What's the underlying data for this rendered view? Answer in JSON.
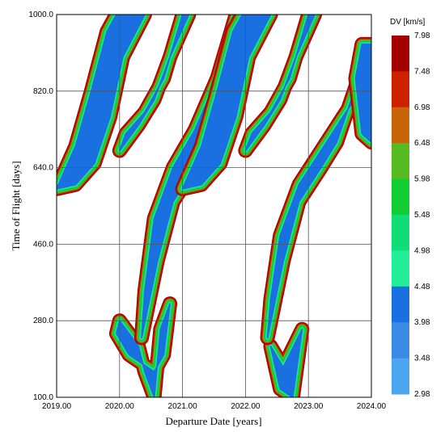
{
  "chart_data": {
    "type": "contour",
    "xlabel": "Departure Date [years]",
    "ylabel": "Time of Flight [days]",
    "xlim": [
      2019.0,
      2024.0
    ],
    "ylim": [
      100.0,
      1000.0
    ],
    "x_ticks": [
      "2019.00",
      "2020.00",
      "2021.00",
      "2022.00",
      "2023.00",
      "2024.00"
    ],
    "y_ticks": [
      "100.0",
      "280.0",
      "460.0",
      "640.0",
      "820.0",
      "1000.0"
    ],
    "x_tick_values": [
      2019,
      2020,
      2021,
      2022,
      2023,
      2024
    ],
    "y_tick_values": [
      100,
      280,
      460,
      640,
      820,
      1000
    ],
    "grid": true,
    "colorbar": {
      "title": "DV [km/s]",
      "levels": [
        "7.98",
        "7.48",
        "6.98",
        "6.48",
        "5.98",
        "5.48",
        "4.98",
        "4.48",
        "3.98",
        "3.48",
        "2.98"
      ],
      "level_values": [
        7.98,
        7.48,
        6.98,
        6.48,
        5.98,
        5.48,
        4.98,
        4.48,
        3.98,
        3.48,
        2.98
      ],
      "colors": [
        "#a40000",
        "#cc2200",
        "#c8640a",
        "#55bb1e",
        "#11cc33",
        "#11dd77",
        "#22ee99",
        "#1a70e0",
        "#3a8ae6",
        "#4aa6f0"
      ]
    },
    "regions": [
      {
        "band": "short",
        "points": [
          [
            2020.3,
            220
          ],
          [
            2020.0,
            280
          ],
          [
            2019.95,
            250
          ],
          [
            2020.15,
            200
          ],
          [
            2020.55,
            160
          ],
          [
            2020.7,
            200
          ],
          [
            2020.8,
            320
          ],
          [
            2020.65,
            260
          ],
          [
            2020.55,
            100
          ],
          [
            2020.4,
            160
          ]
        ]
      },
      {
        "band": "mid-1",
        "points": [
          [
            2020.35,
            240
          ],
          [
            2020.6,
            420
          ],
          [
            2020.85,
            560
          ],
          [
            2021.2,
            640
          ],
          [
            2021.45,
            700
          ],
          [
            2021.8,
            830
          ],
          [
            2022.05,
            960
          ],
          [
            2022.2,
            1000
          ],
          [
            2021.85,
            1000
          ],
          [
            2021.55,
            850
          ],
          [
            2021.2,
            730
          ],
          [
            2020.85,
            640
          ],
          [
            2020.55,
            520
          ],
          [
            2020.4,
            350
          ]
        ]
      },
      {
        "band": "long-1",
        "points": [
          [
            2019.0,
            590
          ],
          [
            2019.3,
            690
          ],
          [
            2019.55,
            820
          ],
          [
            2019.8,
            960
          ],
          [
            2019.95,
            1000
          ],
          [
            2020.4,
            1000
          ],
          [
            2020.05,
            900
          ],
          [
            2019.85,
            760
          ],
          [
            2019.6,
            650
          ],
          [
            2019.3,
            600
          ]
        ]
      },
      {
        "band": "long-1b",
        "points": [
          [
            2020.0,
            680
          ],
          [
            2020.3,
            740
          ],
          [
            2020.55,
            800
          ],
          [
            2020.8,
            900
          ],
          [
            2021.1,
            1000
          ],
          [
            2021.0,
            1000
          ],
          [
            2020.7,
            850
          ],
          [
            2020.4,
            770
          ],
          [
            2020.1,
            720
          ]
        ]
      },
      {
        "band": "short-2",
        "points": [
          [
            2022.4,
            220
          ],
          [
            2022.6,
            170
          ],
          [
            2022.9,
            260
          ],
          [
            2022.75,
            100
          ],
          [
            2022.55,
            120
          ]
        ]
      },
      {
        "band": "mid-2",
        "points": [
          [
            2022.35,
            240
          ],
          [
            2022.6,
            420
          ],
          [
            2022.85,
            560
          ],
          [
            2023.2,
            640
          ],
          [
            2023.45,
            700
          ],
          [
            2023.75,
            830
          ],
          [
            2024.0,
            910
          ],
          [
            2024.0,
            860
          ],
          [
            2023.55,
            760
          ],
          [
            2023.2,
            680
          ],
          [
            2022.85,
            600
          ],
          [
            2022.55,
            480
          ],
          [
            2022.4,
            330
          ]
        ]
      },
      {
        "band": "long-2",
        "points": [
          [
            2021.0,
            590
          ],
          [
            2021.3,
            690
          ],
          [
            2021.55,
            820
          ],
          [
            2021.8,
            960
          ],
          [
            2021.95,
            1000
          ],
          [
            2022.4,
            1000
          ],
          [
            2022.05,
            900
          ],
          [
            2021.85,
            760
          ],
          [
            2021.6,
            650
          ],
          [
            2021.3,
            600
          ]
        ]
      },
      {
        "band": "long-2b",
        "points": [
          [
            2022.0,
            680
          ],
          [
            2022.3,
            740
          ],
          [
            2022.55,
            800
          ],
          [
            2022.8,
            900
          ],
          [
            2023.1,
            1000
          ],
          [
            2023.0,
            1000
          ],
          [
            2022.7,
            850
          ],
          [
            2022.4,
            770
          ],
          [
            2022.1,
            720
          ]
        ]
      },
      {
        "band": "right-edge",
        "points": [
          [
            2023.75,
            850
          ],
          [
            2023.85,
            930
          ],
          [
            2024.0,
            930
          ],
          [
            2024.0,
            700
          ],
          [
            2023.85,
            720
          ]
        ]
      }
    ]
  }
}
